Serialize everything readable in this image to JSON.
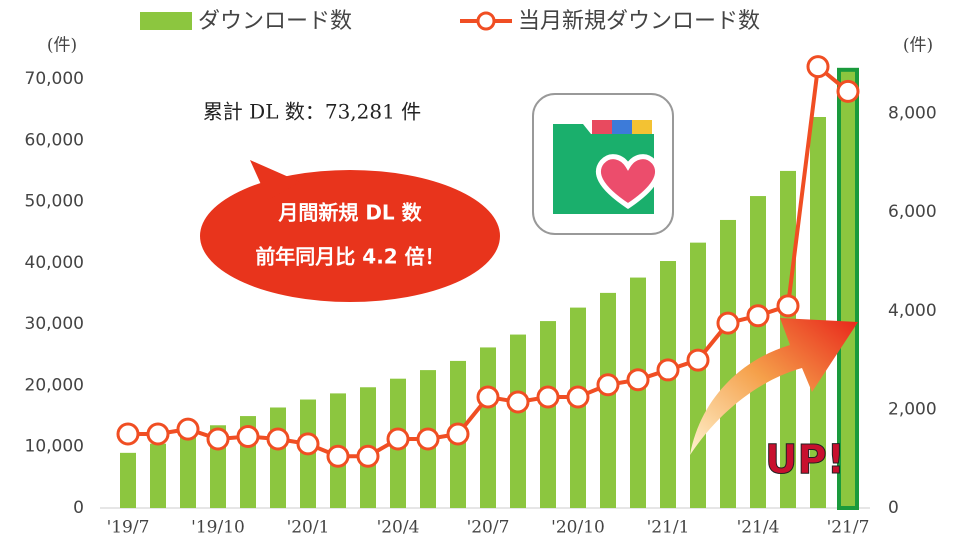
{
  "chart_data": {
    "type": "bar-line",
    "unit_left": "(件)",
    "unit_right": "(件)",
    "annotation": "累計 DL 数：73,281 件",
    "callout": [
      "月間新規 DL 数",
      "前年同月比 4.2 倍！"
    ],
    "badge": "UP!",
    "categories": [
      "'19/7",
      null,
      null,
      "'19/10",
      null,
      null,
      "'20/1",
      null,
      null,
      "'20/4",
      null,
      null,
      "'20/7",
      null,
      null,
      "'20/10",
      null,
      null,
      "'21/1",
      null,
      null,
      "'21/4",
      null,
      null,
      "'21/7"
    ],
    "series": [
      {
        "name": "ダウンロード数",
        "color": "#8cc63f",
        "axis": "y",
        "values": [
          9000,
          10500,
          12000,
          13500,
          15000,
          16400,
          17700,
          18700,
          19700,
          21100,
          22500,
          24000,
          26200,
          28300,
          30500,
          32700,
          35100,
          37600,
          40300,
          43300,
          47000,
          50900,
          55000,
          63800,
          71500
        ]
      },
      {
        "name": "当月新規ダウンロード数",
        "color": "#f04e23",
        "axis": "y2",
        "values": [
          1500,
          1500,
          1600,
          1400,
          1450,
          1400,
          1300,
          1050,
          1050,
          1400,
          1400,
          1500,
          2250,
          2150,
          2250,
          2250,
          2500,
          2600,
          2800,
          3000,
          3750,
          3900,
          4100,
          8950,
          8450
        ]
      }
    ],
    "ylim": [
      0,
      70000
    ],
    "yticks": [
      0,
      {
        "value": 10000,
        "label": "10,000"
      },
      {
        "value": 20000,
        "label": "20,000"
      },
      {
        "value": 30000,
        "label": "30,000"
      },
      {
        "value": 40000,
        "label": "40,000"
      },
      {
        "value": 50000,
        "label": "50,000"
      },
      {
        "value": 60000,
        "label": "60,000"
      },
      {
        "value": 70000,
        "label": "70,000"
      }
    ],
    "y2lim": [
      0,
      8700
    ],
    "y2ticks": [
      0,
      {
        "value": 2000,
        "label": "2,000"
      },
      {
        "value": 4000,
        "label": "4,000"
      },
      {
        "value": 6000,
        "label": "6,000"
      },
      {
        "value": 8000,
        "label": "8,000"
      }
    ]
  }
}
